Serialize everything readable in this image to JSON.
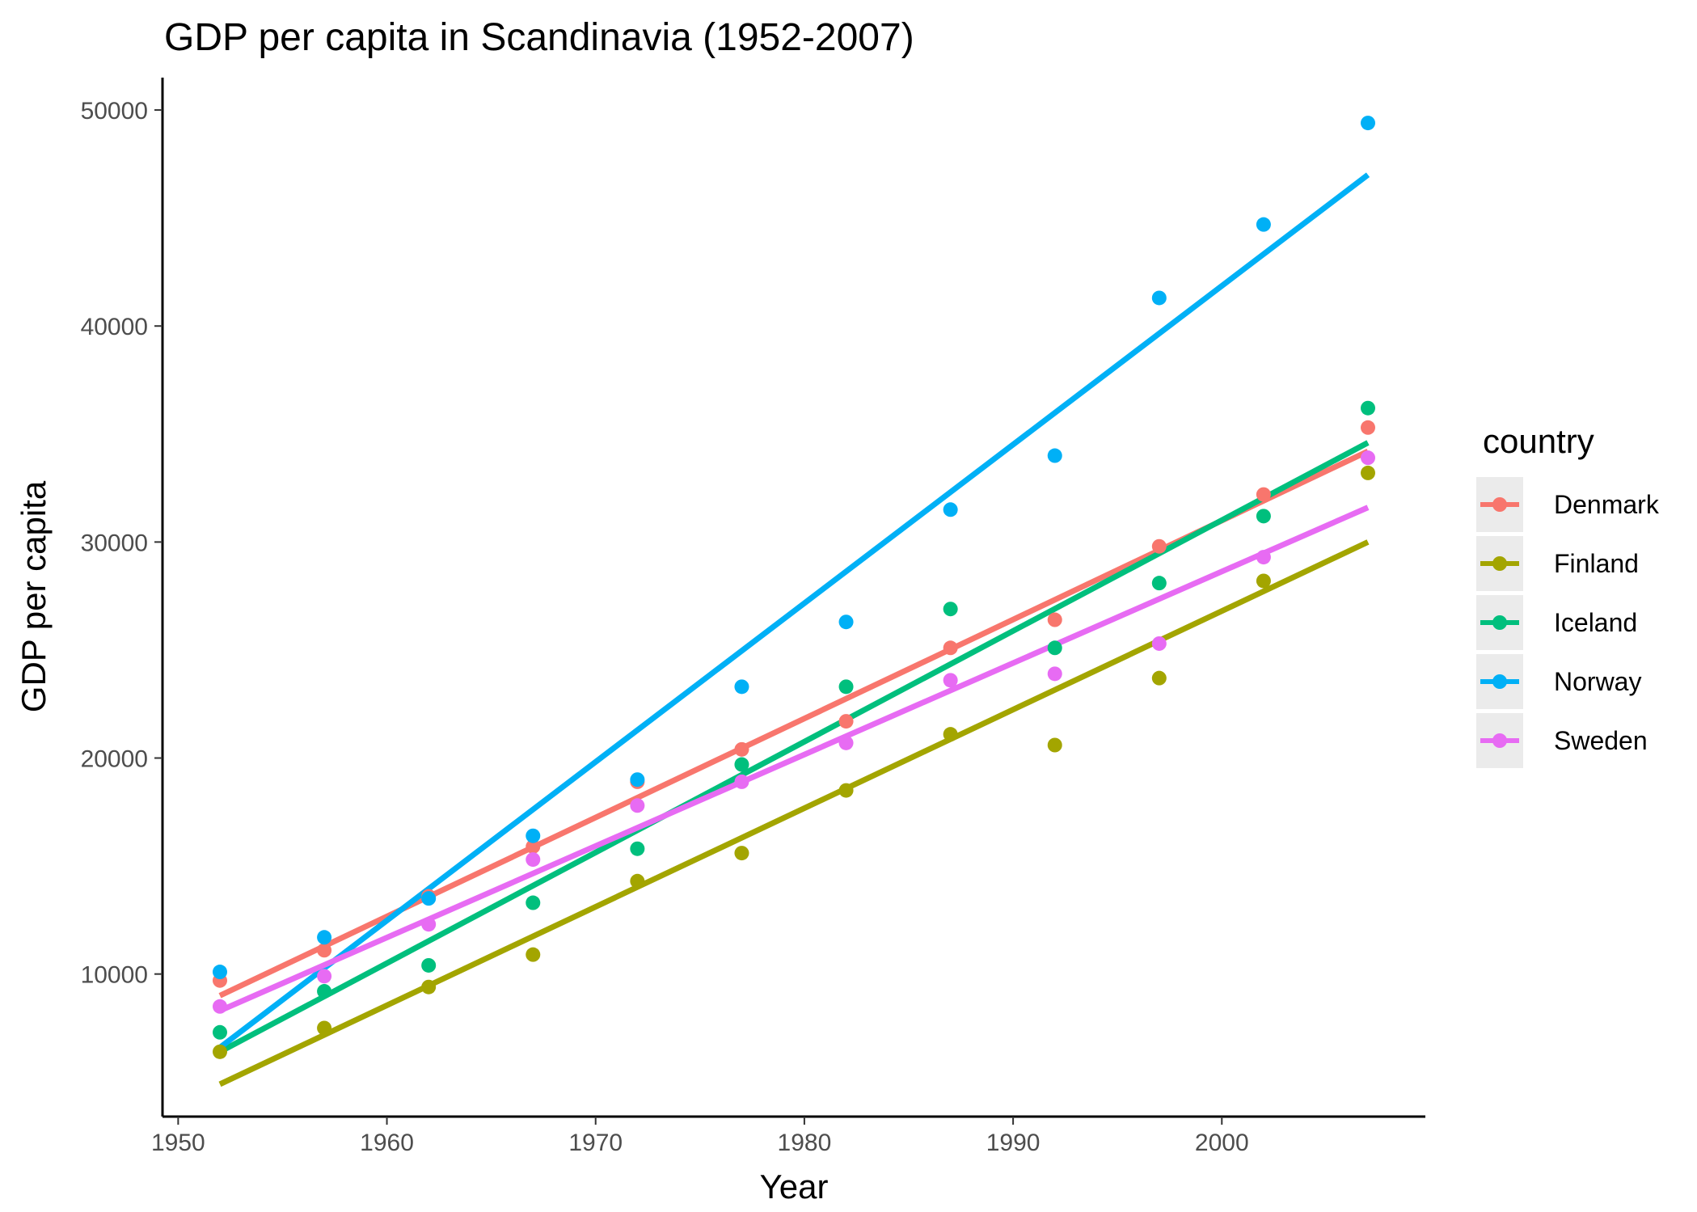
{
  "chart_data": {
    "type": "scatter",
    "title": "GDP per capita in Scandinavia (1952-2007)",
    "xlabel": "Year",
    "ylabel": "GDP per capita",
    "xlim": [
      1949.25,
      2009.75
    ],
    "ylim": [
      3400,
      51500
    ],
    "xticks": [
      1950,
      1960,
      1970,
      1980,
      1990,
      2000
    ],
    "yticks": [
      10000,
      20000,
      30000,
      40000,
      50000
    ],
    "grid": false,
    "legend": {
      "title": "country",
      "position": "right"
    },
    "x": [
      1952,
      1957,
      1962,
      1967,
      1972,
      1977,
      1982,
      1987,
      1992,
      1997,
      2002,
      2007
    ],
    "series": [
      {
        "name": "Denmark",
        "color": "#F8766D",
        "values": [
          9700,
          11100,
          13600,
          15900,
          18900,
          20400,
          21700,
          25100,
          26400,
          29800,
          32200,
          35300
        ],
        "trend": [
          9000,
          34200
        ]
      },
      {
        "name": "Finland",
        "color": "#A3A500",
        "values": [
          6400,
          7500,
          9400,
          10900,
          14300,
          15600,
          18500,
          21100,
          20600,
          23700,
          28200,
          33200
        ],
        "trend": [
          4900,
          30000
        ]
      },
      {
        "name": "Iceland",
        "color": "#00BF7D",
        "values": [
          7300,
          9200,
          10400,
          13300,
          15800,
          19700,
          23300,
          26900,
          25100,
          28100,
          31200,
          36200
        ],
        "trend": [
          6400,
          34600
        ]
      },
      {
        "name": "Norway",
        "color": "#00B0F6",
        "values": [
          10100,
          11700,
          13500,
          16400,
          19000,
          23300,
          26300,
          31500,
          34000,
          41300,
          44700,
          49400
        ],
        "trend": [
          6600,
          47000
        ]
      },
      {
        "name": "Sweden",
        "color": "#E76BF3",
        "values": [
          8500,
          9900,
          12300,
          15300,
          17800,
          18900,
          20700,
          23600,
          23900,
          25300,
          29300,
          33900
        ],
        "trend": [
          8300,
          31600
        ]
      }
    ]
  }
}
